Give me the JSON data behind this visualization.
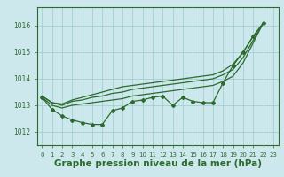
{
  "background_color": "#cce8ec",
  "plot_bg_color": "#cce8ec",
  "grid_color": "#99cccc",
  "line_color": "#2d6a2d",
  "xlabel": "Graphe pression niveau de la mer (hPa)",
  "xlabel_fontsize": 7.5,
  "xlim": [
    -0.5,
    23.5
  ],
  "ylim": [
    1011.5,
    1016.7
  ],
  "yticks": [
    1012,
    1013,
    1014,
    1015,
    1016
  ],
  "xticks": [
    0,
    1,
    2,
    3,
    4,
    5,
    6,
    7,
    8,
    9,
    10,
    11,
    12,
    13,
    14,
    15,
    16,
    17,
    18,
    19,
    20,
    21,
    22,
    23
  ],
  "s_top": [
    1013.35,
    1013.1,
    1013.0,
    1013.15,
    1013.2,
    1013.3,
    1013.35,
    1013.45,
    1013.5,
    1013.6,
    1013.65,
    1013.7,
    1013.75,
    1013.8,
    1013.85,
    1013.9,
    1013.95,
    1014.0,
    1014.15,
    1014.35,
    1014.8,
    1015.45,
    1016.1
  ],
  "s_mid": [
    1013.3,
    1013.0,
    1012.9,
    1013.0,
    1013.05,
    1013.1,
    1013.15,
    1013.2,
    1013.25,
    1013.35,
    1013.4,
    1013.45,
    1013.5,
    1013.55,
    1013.6,
    1013.65,
    1013.7,
    1013.75,
    1013.9,
    1014.1,
    1014.6,
    1015.35,
    1016.1
  ],
  "s_markers": [
    1013.3,
    1012.85,
    1012.6,
    1012.45,
    1012.35,
    1012.28,
    1012.28,
    1012.8,
    1012.9,
    1013.15,
    1013.2,
    1013.3,
    1013.35,
    1013.0,
    1013.3,
    1013.15,
    1013.1,
    1013.1,
    1013.85,
    1014.5,
    1015.0,
    1015.6,
    1016.1
  ],
  "s_wide_top": [
    1013.35,
    1013.1,
    1013.05,
    1013.2,
    1013.3,
    1013.4,
    1013.5,
    1013.6,
    1013.7,
    1013.75,
    1013.8,
    1013.85,
    1013.9,
    1013.95,
    1014.0,
    1014.05,
    1014.1,
    1014.15,
    1014.3,
    1014.55,
    1015.0,
    1015.6,
    1016.1
  ],
  "marker": "D",
  "marker_size": 2.0,
  "linewidth": 0.9
}
